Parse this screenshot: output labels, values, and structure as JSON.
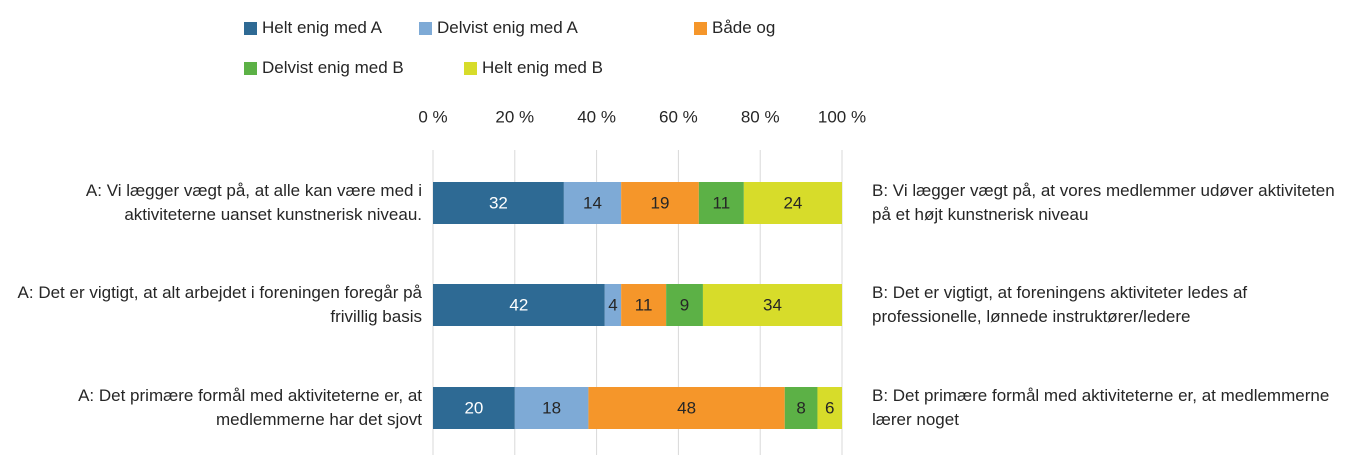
{
  "chart_data": {
    "type": "stacked_bar_horizontal",
    "categories": [
      "A: Vi lægger vægt på, at alle kan være med i aktiviteterne uanset kunstnerisk niveau.",
      "A: Det er vigtigt, at alt arbejdet i foreningen foregår på frivillig basis",
      "A: Det primære formål med aktiviteterne er, at medlemmerne har det sjovt"
    ],
    "right_labels": [
      "B: Vi lægger vægt på, at vores medlemmer udøver aktiviteten på et højt kunstnerisk niveau",
      "B: Det er vigtigt, at foreningens aktiviteter ledes af professionelle, lønnede instruktører/ledere",
      "B: Det primære formål med aktiviteterne er, at medlemmerne lærer noget"
    ],
    "series": [
      {
        "name": "Helt enig med A",
        "color": "#2e6a94",
        "values": [
          32,
          42,
          20
        ]
      },
      {
        "name": "Delvist enig med A",
        "color": "#7eaad6",
        "values": [
          14,
          4,
          18
        ]
      },
      {
        "name": "Både og",
        "color": "#f5962a",
        "values": [
          19,
          11,
          48
        ]
      },
      {
        "name": "Delvist enig med B",
        "color": "#5cb146",
        "values": [
          11,
          9,
          8
        ]
      },
      {
        "name": "Helt enig med B",
        "color": "#d7dc2a",
        "values": [
          24,
          34,
          6
        ]
      }
    ],
    "xlim": [
      0,
      100
    ],
    "xticks": [
      {
        "value": 0,
        "label": "0 %"
      },
      {
        "value": 20,
        "label": "20 %"
      },
      {
        "value": 40,
        "label": "40 %"
      },
      {
        "value": 60,
        "label": "60 %"
      },
      {
        "value": 80,
        "label": "80 %"
      },
      {
        "value": 100,
        "label": "100 %"
      }
    ],
    "grid": true,
    "legend": "top"
  }
}
